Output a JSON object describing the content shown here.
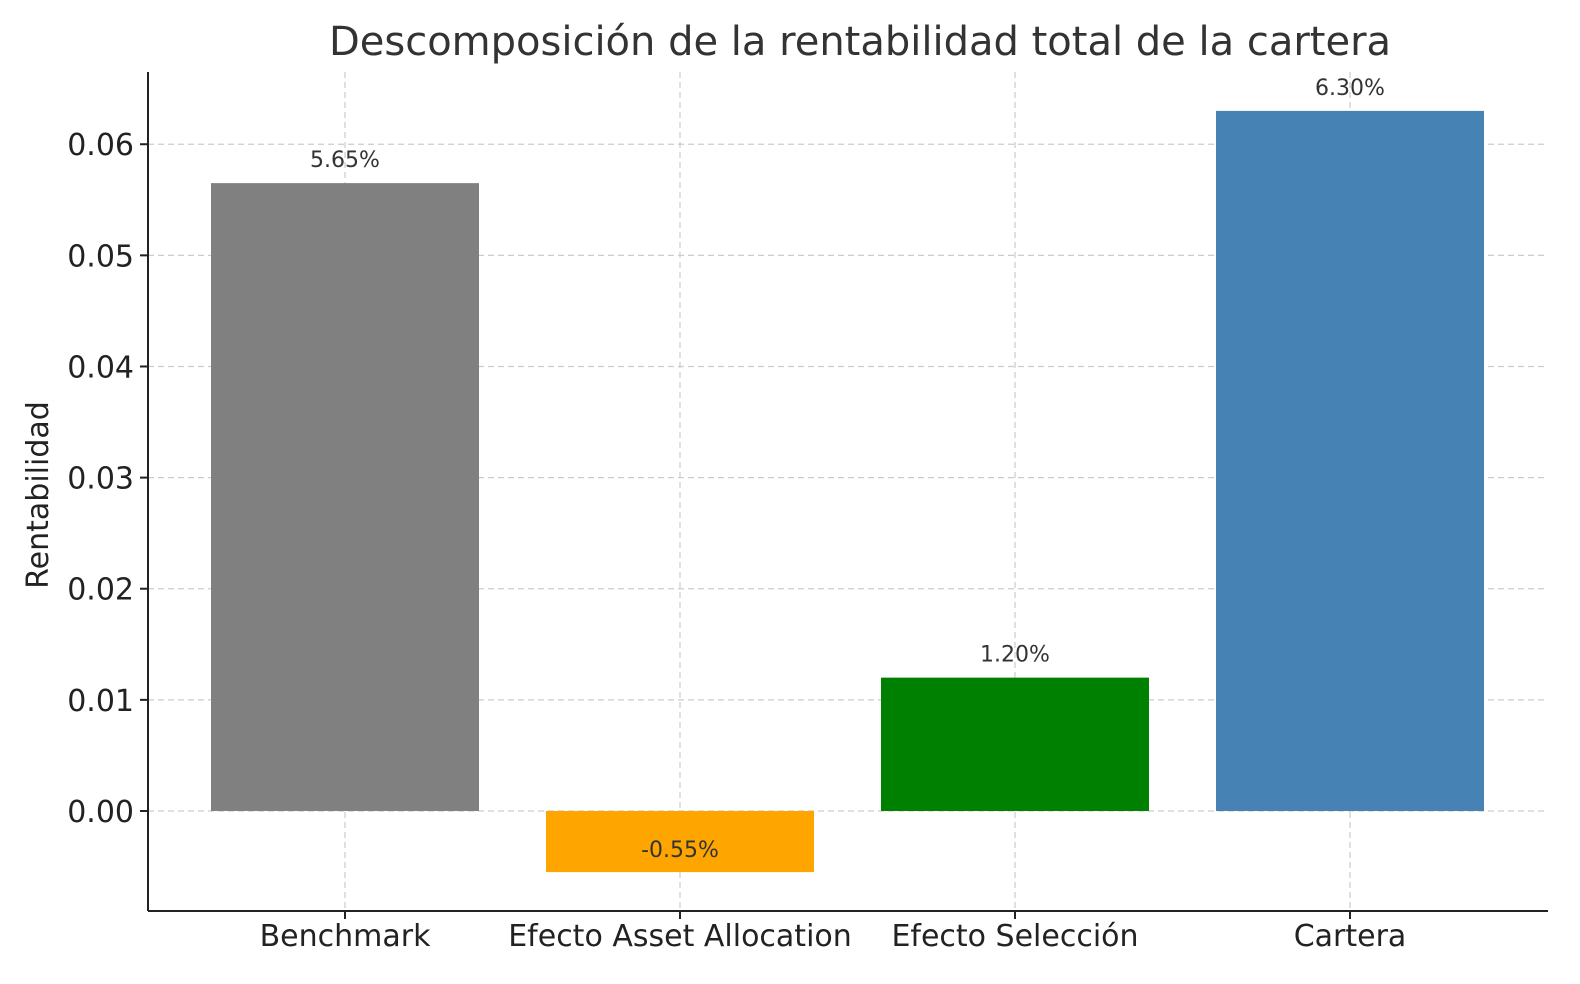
{
  "chart_data": {
    "type": "bar",
    "title": "Descomposición de la rentabilidad total de la cartera",
    "xlabel": "",
    "ylabel": "Rentabilidad",
    "categories": [
      "Benchmark",
      "Efecto Asset Allocation",
      "Efecto Selección",
      "Cartera"
    ],
    "values": [
      0.0565,
      -0.0055,
      0.012,
      0.063
    ],
    "data_labels": [
      "5.65%",
      "-0.55%",
      "1.20%",
      "6.30%"
    ],
    "colors": [
      "#808080",
      "#FFA500",
      "#008000",
      "#4682B4"
    ],
    "ylim": [
      -0.009,
      0.0665
    ],
    "yticks": [
      0.0,
      0.01,
      0.02,
      0.03,
      0.04,
      0.05,
      0.06
    ],
    "ytick_labels": [
      "0.00",
      "0.01",
      "0.02",
      "0.03",
      "0.04",
      "0.05",
      "0.06"
    ],
    "grid": true
  }
}
